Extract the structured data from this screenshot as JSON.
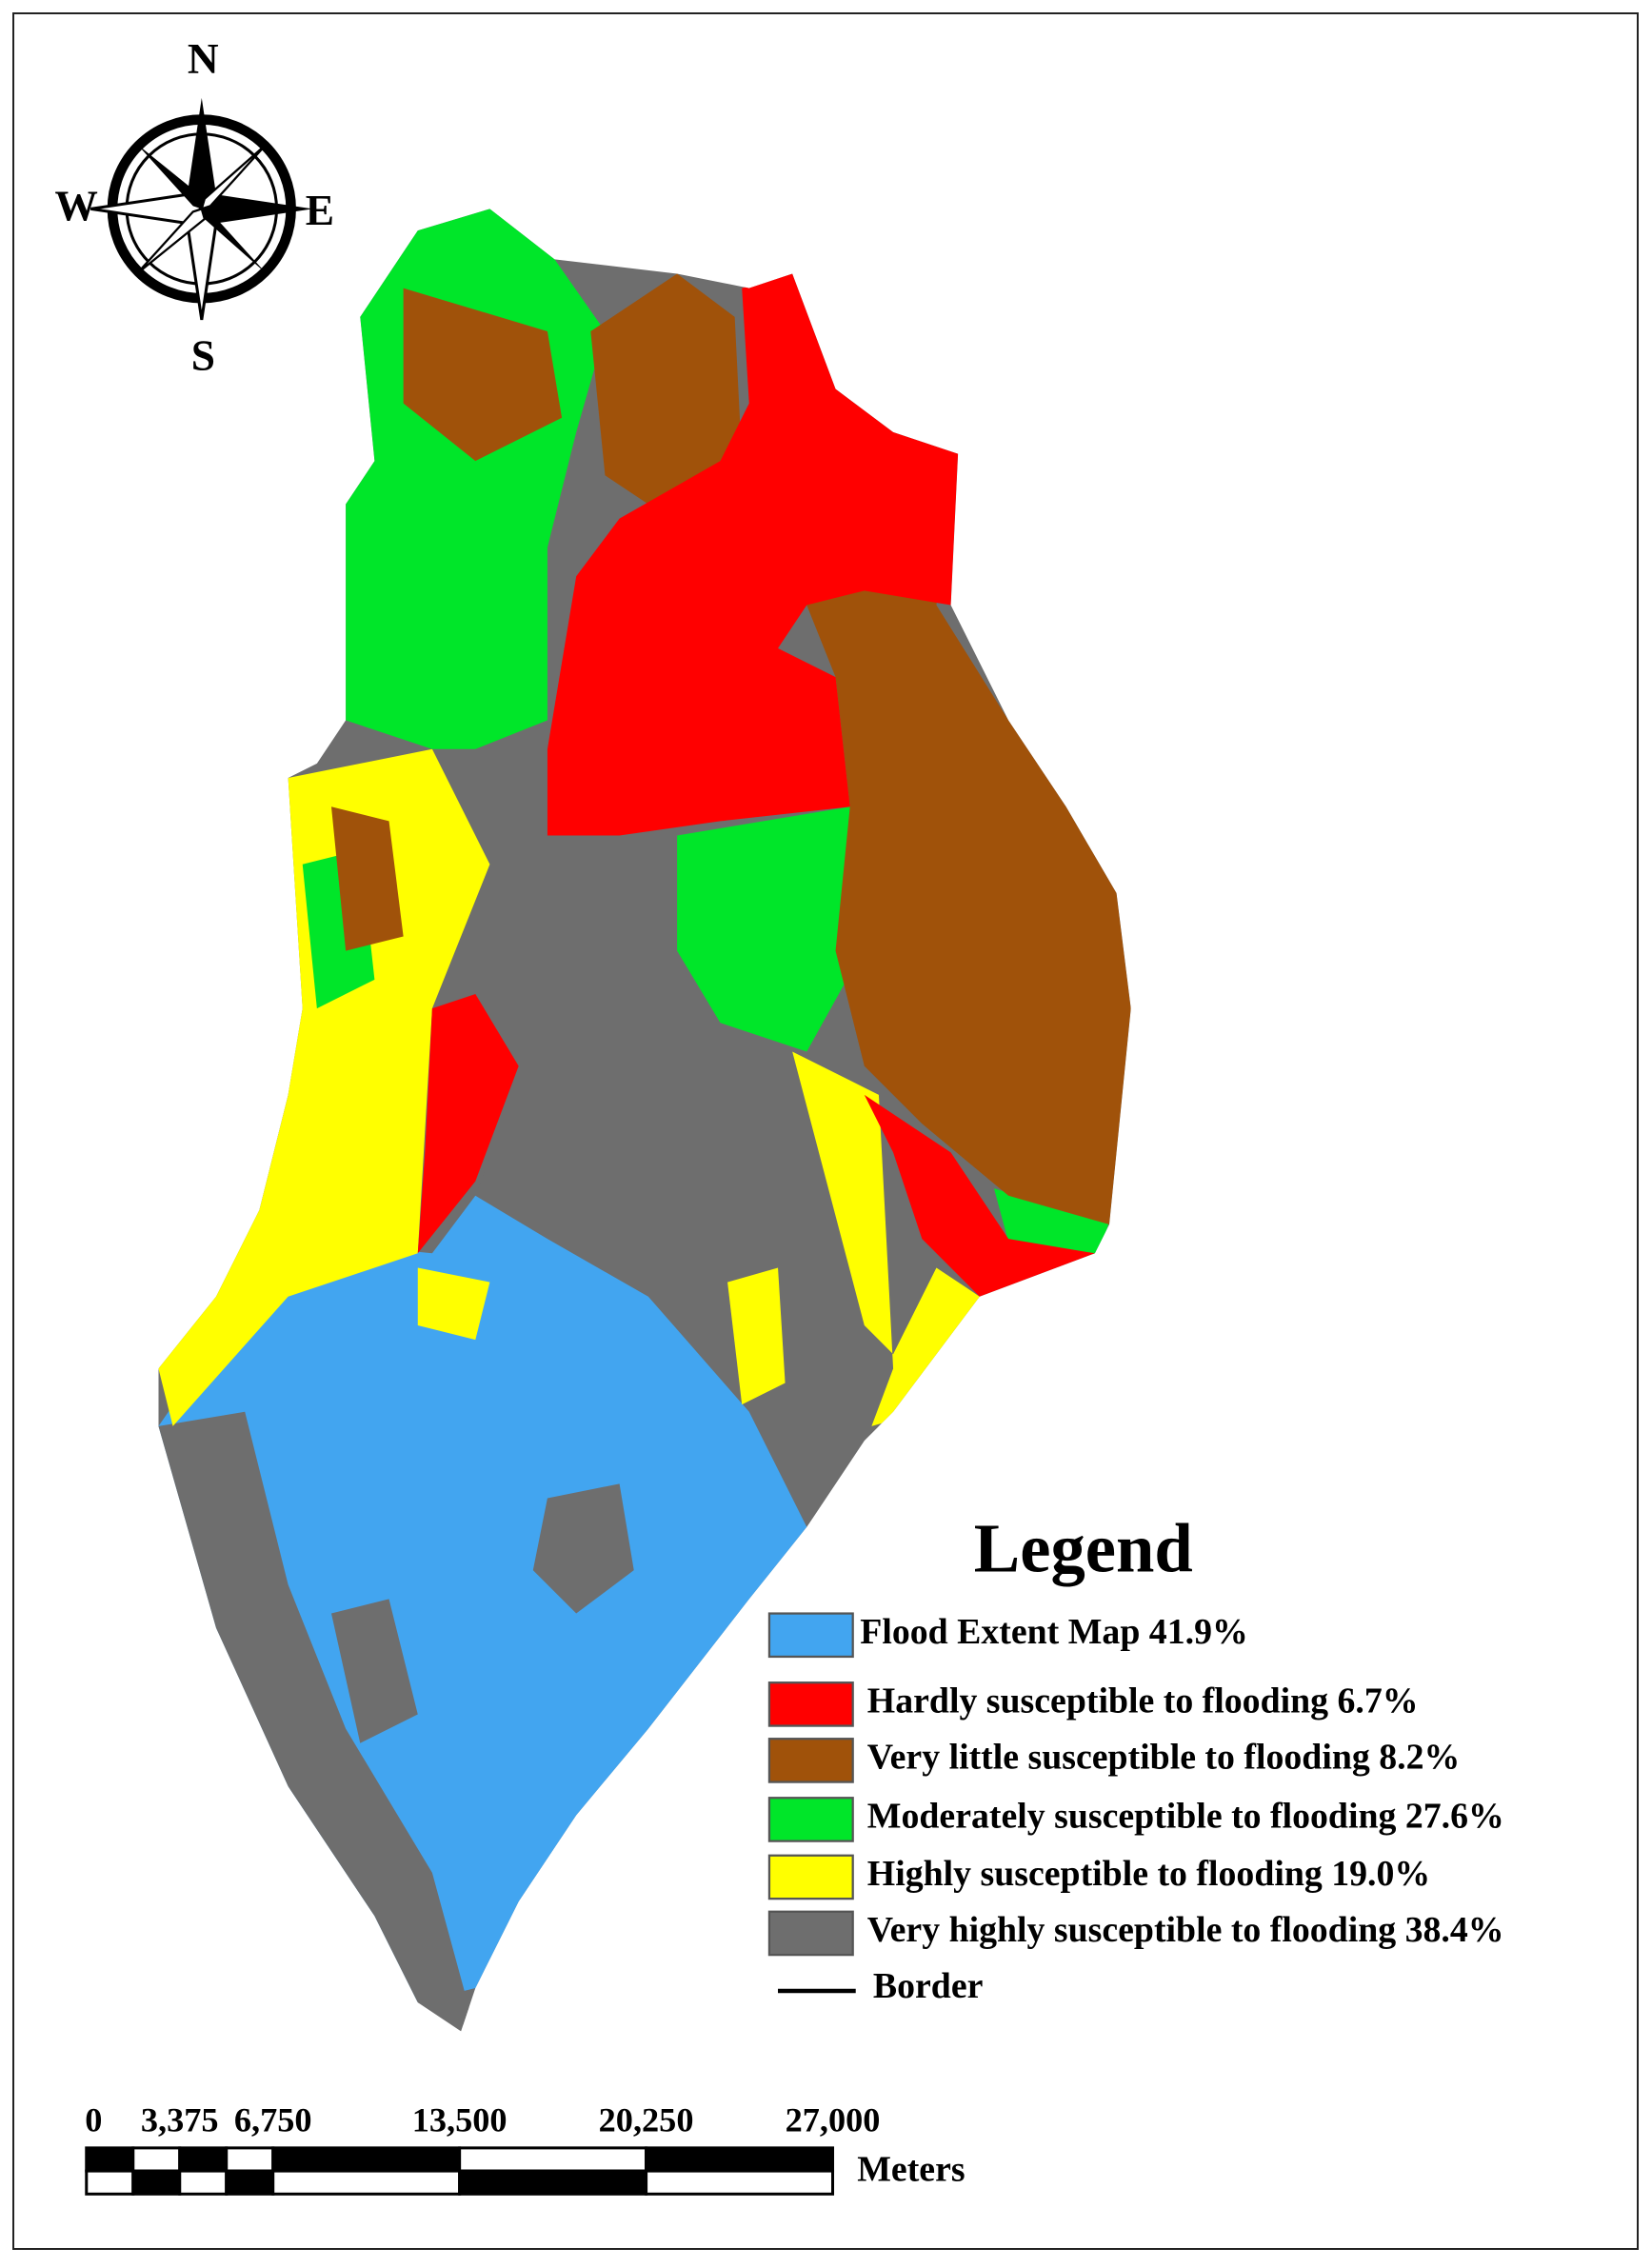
{
  "compass": {
    "north": "N",
    "south": "S",
    "west": "W",
    "east": "E"
  },
  "legend": {
    "title": "Legend",
    "items": [
      {
        "label": "Flood Extent Map 41.9%",
        "color": "#42a5f0"
      },
      {
        "label": "Hardly susceptible to flooding 6.7%",
        "color": "#ff0000"
      },
      {
        "label": "Very little susceptible to flooding 8.2%",
        "color": "#a0520a"
      },
      {
        "label": "Moderately susceptible to flooding 27.6%",
        "color": "#00e629"
      },
      {
        "label": "Highly susceptible to flooding 19.0%",
        "color": "#ffff00"
      },
      {
        "label": "Very highly susceptible to flooding 38.4%",
        "color": "#6e6e6e"
      }
    ],
    "border": "Border"
  },
  "scale_bar": {
    "labels": [
      "0",
      "3,375",
      "6,750",
      "13,500",
      "20,250",
      "27,000"
    ],
    "unit": "Meters"
  }
}
